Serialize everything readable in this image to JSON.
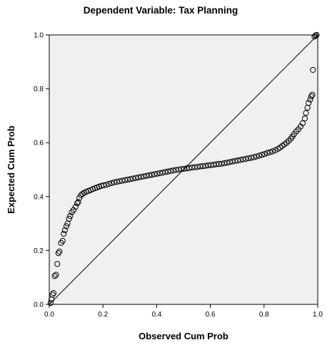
{
  "chart_data": {
    "type": "scatter",
    "title": "Dependent Variable: Tax Planning",
    "xlabel": "Observed Cum Prob",
    "ylabel": "Expected Cum Prob",
    "xlim": [
      0,
      1
    ],
    "ylim": [
      0,
      1
    ],
    "x_ticks": [
      "0.0",
      "0.2",
      "0.4",
      "0.6",
      "0.8",
      "1.0"
    ],
    "y_ticks": [
      "0.0",
      "0.2",
      "0.4",
      "0.6",
      "0.8",
      "1.0"
    ],
    "grid": false,
    "legend": "none",
    "reference_line": {
      "from": [
        0,
        0
      ],
      "to": [
        1,
        1
      ]
    },
    "plot_background": "#f0f0f0",
    "marker_color": "#000000",
    "series": [
      {
        "marker": "open-circle",
        "points": [
          [
            0.005,
            0.005
          ],
          [
            0.008,
            0.018
          ],
          [
            0.012,
            0.036
          ],
          [
            0.016,
            0.042
          ],
          [
            0.02,
            0.105
          ],
          [
            0.025,
            0.11
          ],
          [
            0.03,
            0.15
          ],
          [
            0.034,
            0.19
          ],
          [
            0.038,
            0.196
          ],
          [
            0.044,
            0.228
          ],
          [
            0.05,
            0.236
          ],
          [
            0.054,
            0.262
          ],
          [
            0.058,
            0.275
          ],
          [
            0.064,
            0.29
          ],
          [
            0.068,
            0.3
          ],
          [
            0.074,
            0.318
          ],
          [
            0.078,
            0.328
          ],
          [
            0.084,
            0.342
          ],
          [
            0.09,
            0.35
          ],
          [
            0.098,
            0.362
          ],
          [
            0.104,
            0.375
          ],
          [
            0.108,
            0.38
          ],
          [
            0.112,
            0.395
          ],
          [
            0.118,
            0.405
          ],
          [
            0.124,
            0.41
          ],
          [
            0.13,
            0.414
          ],
          [
            0.138,
            0.418
          ],
          [
            0.146,
            0.421
          ],
          [
            0.154,
            0.424
          ],
          [
            0.162,
            0.428
          ],
          [
            0.17,
            0.431
          ],
          [
            0.178,
            0.434
          ],
          [
            0.186,
            0.437
          ],
          [
            0.194,
            0.44
          ],
          [
            0.202,
            0.442
          ],
          [
            0.212,
            0.444
          ],
          [
            0.222,
            0.447
          ],
          [
            0.232,
            0.45
          ],
          [
            0.242,
            0.453
          ],
          [
            0.252,
            0.455
          ],
          [
            0.262,
            0.457
          ],
          [
            0.272,
            0.459
          ],
          [
            0.282,
            0.461
          ],
          [
            0.292,
            0.463
          ],
          [
            0.302,
            0.465
          ],
          [
            0.312,
            0.467
          ],
          [
            0.322,
            0.469
          ],
          [
            0.332,
            0.471
          ],
          [
            0.342,
            0.473
          ],
          [
            0.352,
            0.475
          ],
          [
            0.362,
            0.477
          ],
          [
            0.372,
            0.479
          ],
          [
            0.382,
            0.481
          ],
          [
            0.392,
            0.483
          ],
          [
            0.402,
            0.485
          ],
          [
            0.412,
            0.487
          ],
          [
            0.422,
            0.489
          ],
          [
            0.432,
            0.491
          ],
          [
            0.442,
            0.493
          ],
          [
            0.452,
            0.495
          ],
          [
            0.462,
            0.497
          ],
          [
            0.472,
            0.499
          ],
          [
            0.482,
            0.5
          ],
          [
            0.492,
            0.502
          ],
          [
            0.502,
            0.503
          ],
          [
            0.512,
            0.505
          ],
          [
            0.522,
            0.506
          ],
          [
            0.532,
            0.508
          ],
          [
            0.542,
            0.509
          ],
          [
            0.552,
            0.51
          ],
          [
            0.562,
            0.512
          ],
          [
            0.572,
            0.513
          ],
          [
            0.582,
            0.514
          ],
          [
            0.592,
            0.516
          ],
          [
            0.602,
            0.517
          ],
          [
            0.612,
            0.518
          ],
          [
            0.622,
            0.52
          ],
          [
            0.632,
            0.521
          ],
          [
            0.642,
            0.522
          ],
          [
            0.652,
            0.524
          ],
          [
            0.662,
            0.526
          ],
          [
            0.672,
            0.528
          ],
          [
            0.682,
            0.53
          ],
          [
            0.692,
            0.532
          ],
          [
            0.702,
            0.534
          ],
          [
            0.712,
            0.536
          ],
          [
            0.722,
            0.538
          ],
          [
            0.732,
            0.54
          ],
          [
            0.742,
            0.542
          ],
          [
            0.752,
            0.544
          ],
          [
            0.762,
            0.546
          ],
          [
            0.772,
            0.549
          ],
          [
            0.782,
            0.552
          ],
          [
            0.792,
            0.555
          ],
          [
            0.802,
            0.558
          ],
          [
            0.812,
            0.562
          ],
          [
            0.822,
            0.565
          ],
          [
            0.832,
            0.568
          ],
          [
            0.842,
            0.572
          ],
          [
            0.852,
            0.577
          ],
          [
            0.86,
            0.582
          ],
          [
            0.868,
            0.588
          ],
          [
            0.876,
            0.594
          ],
          [
            0.884,
            0.6
          ],
          [
            0.892,
            0.607
          ],
          [
            0.9,
            0.615
          ],
          [
            0.906,
            0.623
          ],
          [
            0.912,
            0.632
          ],
          [
            0.92,
            0.642
          ],
          [
            0.928,
            0.65
          ],
          [
            0.936,
            0.66
          ],
          [
            0.944,
            0.672
          ],
          [
            0.952,
            0.69
          ],
          [
            0.956,
            0.71
          ],
          [
            0.962,
            0.73
          ],
          [
            0.966,
            0.748
          ],
          [
            0.972,
            0.76
          ],
          [
            0.976,
            0.772
          ],
          [
            0.98,
            0.778
          ],
          [
            0.982,
            0.87
          ],
          [
            0.988,
            0.994
          ],
          [
            0.992,
            0.998
          ],
          [
            0.996,
            1.0
          ]
        ]
      }
    ]
  }
}
